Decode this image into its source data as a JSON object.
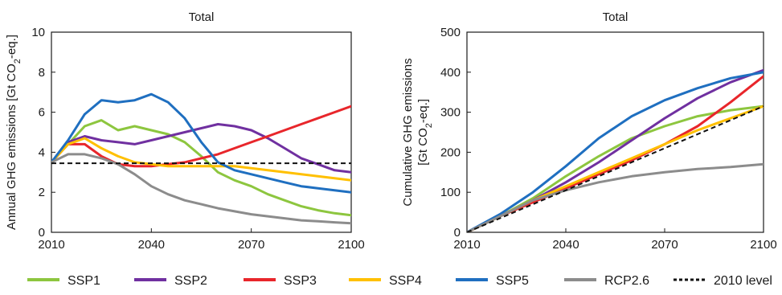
{
  "chart_data": [
    {
      "type": "line",
      "title": "Total",
      "ylabel_parts": [
        "Annual GHG emissions [Gt CO",
        "2",
        "-eq.]"
      ],
      "xlim": [
        2010,
        2100
      ],
      "ylim": [
        0,
        10
      ],
      "xticks": [
        "2010",
        "2040",
        "2070",
        "2100"
      ],
      "yticks": [
        "0",
        "2",
        "4",
        "6",
        "8",
        "10"
      ],
      "grid": false,
      "series": [
        {
          "name": "SSP1",
          "color": "#8dc63f",
          "x": [
            2010,
            2015,
            2020,
            2025,
            2030,
            2035,
            2040,
            2045,
            2050,
            2055,
            2060,
            2065,
            2070,
            2075,
            2080,
            2085,
            2090,
            2095,
            2100
          ],
          "y": [
            3.5,
            4.4,
            5.3,
            5.6,
            5.1,
            5.3,
            5.1,
            4.9,
            4.5,
            3.8,
            3.0,
            2.6,
            2.3,
            1.9,
            1.6,
            1.3,
            1.1,
            0.95,
            0.85
          ]
        },
        {
          "name": "SSP2",
          "color": "#7030a0",
          "x": [
            2010,
            2015,
            2020,
            2025,
            2030,
            2035,
            2040,
            2045,
            2050,
            2055,
            2060,
            2065,
            2070,
            2075,
            2080,
            2085,
            2090,
            2095,
            2100
          ],
          "y": [
            3.5,
            4.5,
            4.8,
            4.6,
            4.5,
            4.4,
            4.6,
            4.8,
            5.0,
            5.2,
            5.4,
            5.3,
            5.1,
            4.7,
            4.2,
            3.7,
            3.4,
            3.1,
            3.0
          ]
        },
        {
          "name": "SSP3",
          "color": "#e8262b",
          "x": [
            2010,
            2015,
            2020,
            2025,
            2030,
            2035,
            2040,
            2045,
            2050,
            2055,
            2060,
            2065,
            2070,
            2075,
            2080,
            2085,
            2090,
            2095,
            2100
          ],
          "y": [
            3.5,
            4.4,
            4.4,
            3.8,
            3.4,
            3.3,
            3.3,
            3.4,
            3.5,
            3.7,
            3.9,
            4.2,
            4.5,
            4.8,
            5.1,
            5.4,
            5.7,
            6.0,
            6.3
          ]
        },
        {
          "name": "SSP4",
          "color": "#ffc000",
          "x": [
            2010,
            2015,
            2020,
            2025,
            2030,
            2035,
            2040,
            2045,
            2050,
            2055,
            2060,
            2065,
            2070,
            2075,
            2080,
            2085,
            2090,
            2095,
            2100
          ],
          "y": [
            3.5,
            4.4,
            4.7,
            4.2,
            3.8,
            3.5,
            3.4,
            3.3,
            3.3,
            3.3,
            3.3,
            3.3,
            3.2,
            3.1,
            3.0,
            2.9,
            2.8,
            2.7,
            2.6
          ]
        },
        {
          "name": "SSP5",
          "color": "#1f6fc0",
          "x": [
            2010,
            2015,
            2020,
            2025,
            2030,
            2035,
            2040,
            2045,
            2050,
            2055,
            2060,
            2065,
            2070,
            2075,
            2080,
            2085,
            2090,
            2095,
            2100
          ],
          "y": [
            3.5,
            4.6,
            5.9,
            6.6,
            6.5,
            6.6,
            6.9,
            6.5,
            5.7,
            4.5,
            3.5,
            3.1,
            2.9,
            2.7,
            2.5,
            2.3,
            2.2,
            2.1,
            2.0
          ]
        },
        {
          "name": "RCP2.6",
          "color": "#8c8c8c",
          "x": [
            2010,
            2015,
            2020,
            2025,
            2030,
            2035,
            2040,
            2045,
            2050,
            2055,
            2060,
            2065,
            2070,
            2075,
            2080,
            2085,
            2090,
            2095,
            2100
          ],
          "y": [
            3.5,
            3.9,
            3.9,
            3.7,
            3.4,
            2.9,
            2.3,
            1.9,
            1.6,
            1.4,
            1.2,
            1.05,
            0.9,
            0.8,
            0.7,
            0.6,
            0.55,
            0.5,
            0.45
          ]
        },
        {
          "name": "2010 level",
          "color": "#111111",
          "dashed": true,
          "x": [
            2010,
            2100
          ],
          "y": [
            3.45,
            3.45
          ]
        }
      ]
    },
    {
      "type": "line",
      "title": "Total",
      "ylabel_line1": "Cumulative GHG emissions",
      "ylabel_parts": [
        "[Gt CO",
        "2",
        "-eq.]"
      ],
      "xlim": [
        2010,
        2100
      ],
      "ylim": [
        0,
        500
      ],
      "xticks": [
        "2010",
        "2040",
        "2070",
        "2100"
      ],
      "yticks": [
        "0",
        "100",
        "200",
        "300",
        "400",
        "500"
      ],
      "grid": false,
      "series": [
        {
          "name": "SSP1",
          "color": "#8dc63f",
          "x": [
            2010,
            2020,
            2030,
            2040,
            2050,
            2060,
            2070,
            2080,
            2090,
            2100
          ],
          "y": [
            0,
            40,
            85,
            140,
            190,
            235,
            265,
            290,
            305,
            315
          ]
        },
        {
          "name": "SSP2",
          "color": "#7030a0",
          "x": [
            2010,
            2020,
            2030,
            2040,
            2050,
            2060,
            2070,
            2080,
            2090,
            2100
          ],
          "y": [
            0,
            40,
            80,
            125,
            175,
            230,
            285,
            335,
            375,
            405
          ]
        },
        {
          "name": "SSP3",
          "color": "#e8262b",
          "x": [
            2010,
            2020,
            2030,
            2040,
            2050,
            2060,
            2070,
            2080,
            2090,
            2100
          ],
          "y": [
            0,
            40,
            75,
            110,
            145,
            180,
            220,
            265,
            325,
            390
          ]
        },
        {
          "name": "SSP4",
          "color": "#ffc000",
          "x": [
            2010,
            2020,
            2030,
            2040,
            2050,
            2060,
            2070,
            2080,
            2090,
            2100
          ],
          "y": [
            0,
            40,
            80,
            115,
            150,
            185,
            220,
            255,
            285,
            315
          ]
        },
        {
          "name": "SSP5",
          "color": "#1f6fc0",
          "x": [
            2010,
            2020,
            2030,
            2040,
            2050,
            2060,
            2070,
            2080,
            2090,
            2100
          ],
          "y": [
            0,
            45,
            100,
            165,
            235,
            290,
            330,
            360,
            385,
            400
          ]
        },
        {
          "name": "RCP2.6",
          "color": "#8c8c8c",
          "x": [
            2010,
            2020,
            2030,
            2040,
            2050,
            2060,
            2070,
            2080,
            2090,
            2100
          ],
          "y": [
            0,
            40,
            80,
            105,
            125,
            140,
            150,
            158,
            163,
            170
          ]
        },
        {
          "name": "2010 level",
          "color": "#111111",
          "dashed": true,
          "x": [
            2010,
            2100
          ],
          "y": [
            0,
            315
          ]
        }
      ]
    }
  ],
  "legend": [
    {
      "label": "SSP1",
      "color": "#8dc63f",
      "dashed": false
    },
    {
      "label": "SSP2",
      "color": "#7030a0",
      "dashed": false
    },
    {
      "label": "SSP3",
      "color": "#e8262b",
      "dashed": false
    },
    {
      "label": "SSP4",
      "color": "#ffc000",
      "dashed": false
    },
    {
      "label": "SSP5",
      "color": "#1f6fc0",
      "dashed": false
    },
    {
      "label": "RCP2.6",
      "color": "#8c8c8c",
      "dashed": false
    },
    {
      "label": "2010 level",
      "color": "#111111",
      "dashed": true
    }
  ]
}
